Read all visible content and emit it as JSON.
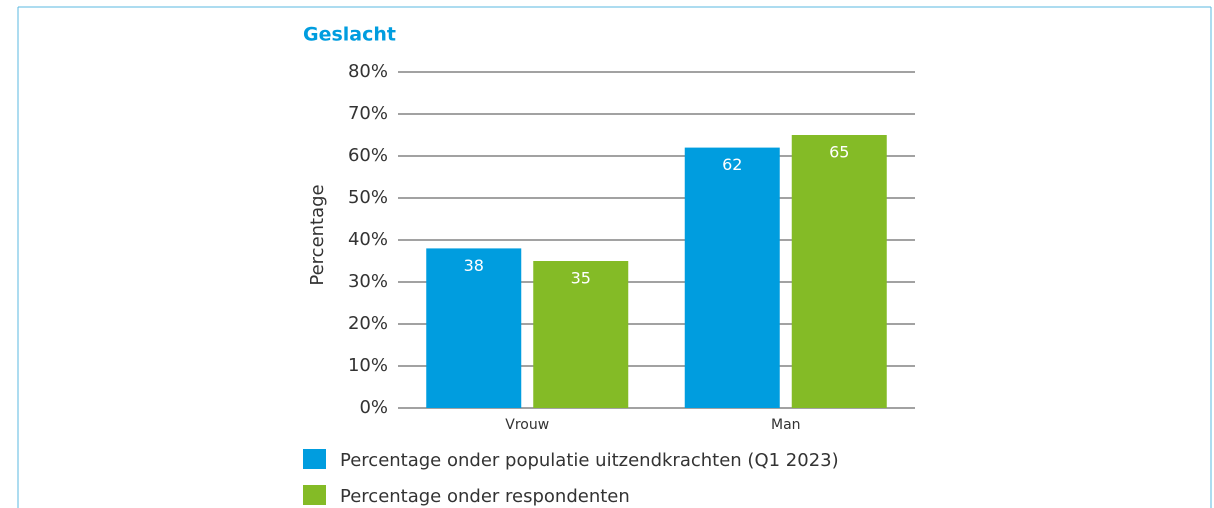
{
  "chart_data": {
    "type": "bar",
    "title": "Geslacht",
    "y_label": "Percentage",
    "categories": [
      "Vrouw",
      "Man"
    ],
    "series": [
      {
        "name": "Percentage onder populatie uitzendkrachten (Q1 2023)",
        "color": "#009ddf",
        "values": [
          38,
          62
        ]
      },
      {
        "name": "Percentage onder respondenten",
        "color": "#84bb26",
        "values": [
          35,
          65
        ]
      }
    ],
    "ylim": [
      0,
      80
    ],
    "yticks": [
      {
        "value": 0,
        "label": "0%"
      },
      {
        "value": 10,
        "label": "10%"
      },
      {
        "value": 20,
        "label": "20%"
      },
      {
        "value": 30,
        "label": "30%"
      },
      {
        "value": 40,
        "label": "40%"
      },
      {
        "value": 50,
        "label": "50%"
      },
      {
        "value": 60,
        "label": "60%"
      },
      {
        "value": 70,
        "label": "70%"
      },
      {
        "value": 80,
        "label": "80%"
      }
    ],
    "grid": true
  }
}
